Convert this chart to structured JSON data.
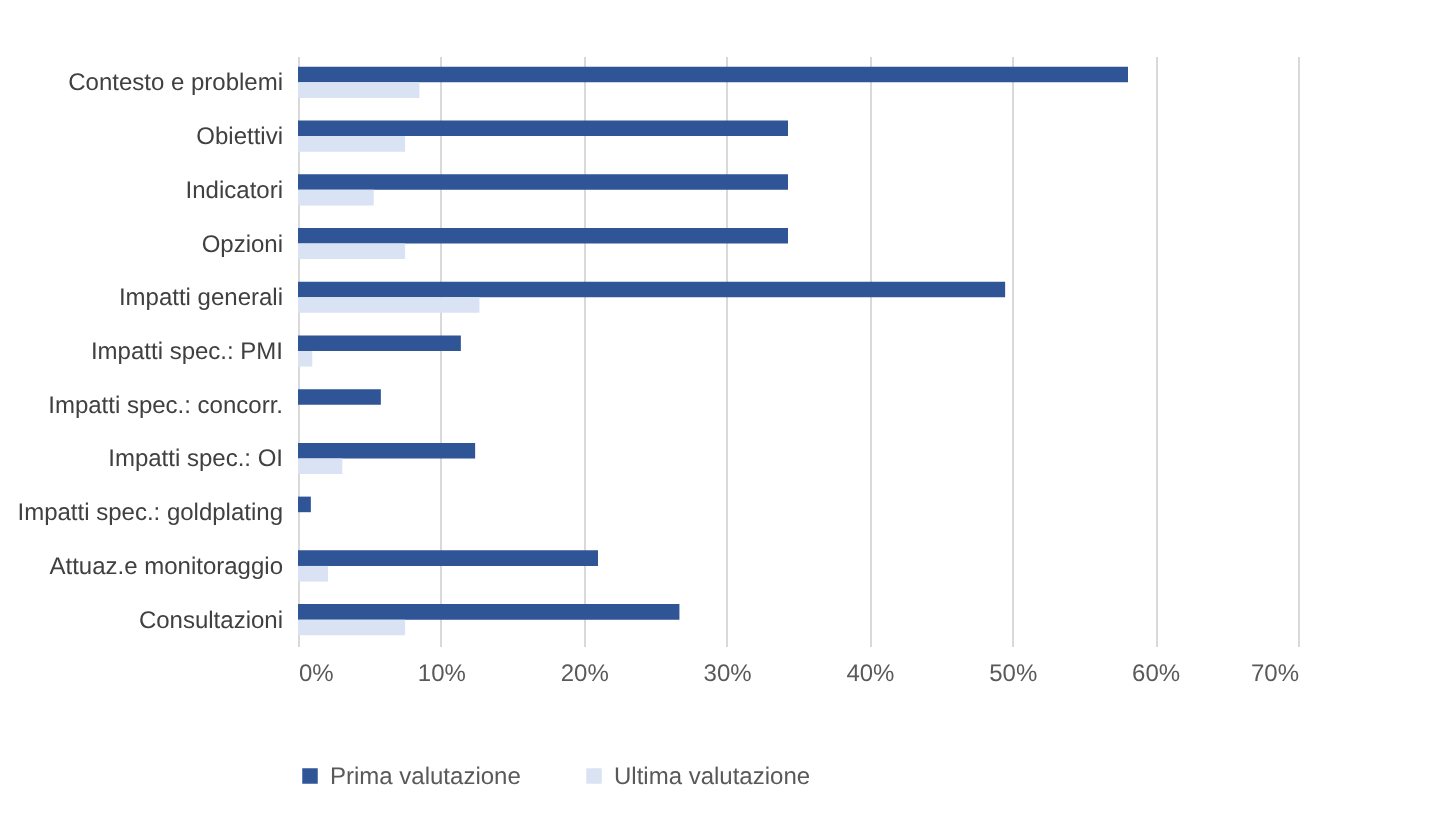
{
  "chart_data": {
    "type": "bar",
    "orientation": "horizontal",
    "categories": [
      "Contesto e problemi",
      "Obiettivi",
      "Indicatori",
      "Opzioni",
      "Impatti generali",
      "Impatti spec.: PMI",
      "Impatti spec.: concorr.",
      "Impatti spec.: OI",
      "Impatti spec.: goldplating",
      "Attuaz.e monitoraggio",
      "Consultazioni"
    ],
    "series": [
      {
        "name": "Prima valutazione",
        "color": "#2f5597",
        "values": [
          58.1,
          34.3,
          34.3,
          34.3,
          49.5,
          11.4,
          5.8,
          12.4,
          0.9,
          21.0,
          26.7
        ]
      },
      {
        "name": "Ultima valutazione",
        "color": "#dae3f3",
        "values": [
          8.5,
          7.5,
          5.3,
          7.5,
          12.7,
          1.0,
          0,
          3.1,
          0,
          2.1,
          7.5
        ]
      }
    ],
    "xlim": [
      0,
      70
    ],
    "xticks": [
      {
        "value": 0,
        "label": "0%"
      },
      {
        "value": 10,
        "label": "10%"
      },
      {
        "value": 20,
        "label": "20%"
      },
      {
        "value": 30,
        "label": "30%"
      },
      {
        "value": 40,
        "label": "40%"
      },
      {
        "value": 50,
        "label": "50%"
      },
      {
        "value": 60,
        "label": "60%"
      },
      {
        "value": 70,
        "label": "70%"
      }
    ],
    "grid": "x",
    "legend": "bottom"
  }
}
